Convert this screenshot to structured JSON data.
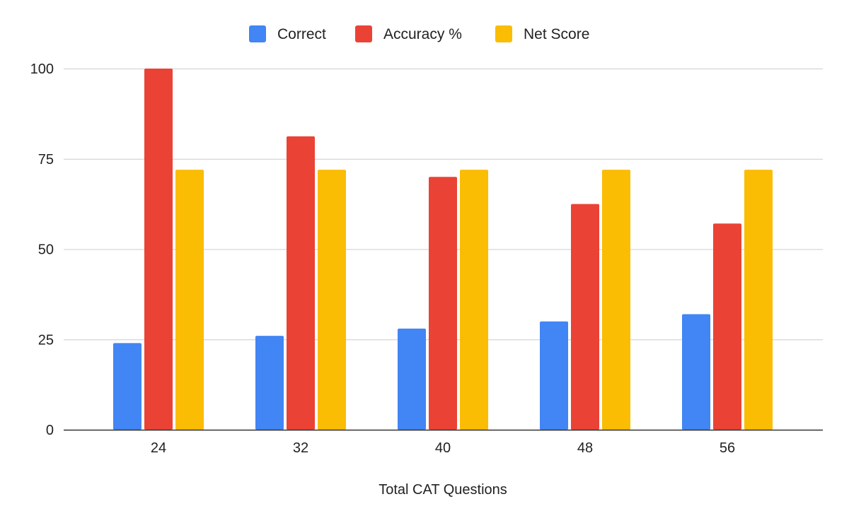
{
  "chart_data": {
    "type": "bar",
    "title": "",
    "xlabel": "Total CAT Questions",
    "ylabel": "",
    "categories": [
      "24",
      "32",
      "40",
      "48",
      "56"
    ],
    "series": [
      {
        "name": "Correct",
        "color": "#4285F4",
        "values": [
          24,
          26,
          28,
          30,
          32
        ]
      },
      {
        "name": "Accuracy %",
        "color": "#EA4335",
        "values": [
          100,
          81.25,
          70,
          62.5,
          57.1
        ]
      },
      {
        "name": "Net Score",
        "color": "#FBBC04",
        "values": [
          72,
          72,
          72,
          72,
          72
        ]
      }
    ],
    "ylim": [
      0,
      100
    ],
    "yticks": [
      "0",
      "25",
      "50",
      "75",
      "100"
    ],
    "grid": true,
    "legend": "top"
  }
}
